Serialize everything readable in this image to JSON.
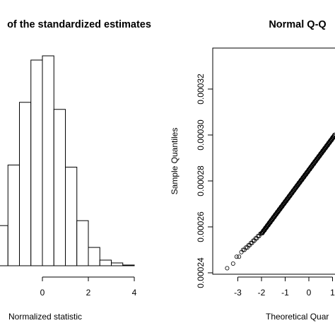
{
  "chart_data": [
    {
      "type": "bar",
      "title": "of the standardized estimates",
      "xlabel": "Normalized statistic",
      "ylabel": "",
      "x_ticks": [
        "0",
        "2",
        "4"
      ],
      "xlim": [
        -2.0,
        4.0
      ],
      "bin_width": 0.5,
      "bins": [
        {
          "x0": -2.0,
          "x1": -1.5,
          "value": 57
        },
        {
          "x0": -1.5,
          "x1": -1.0,
          "value": 143
        },
        {
          "x0": -1.0,
          "x1": -0.5,
          "value": 232
        },
        {
          "x0": -0.5,
          "x1": 0.0,
          "value": 292
        },
        {
          "x0": 0.0,
          "x1": 0.5,
          "value": 298
        },
        {
          "x0": 0.5,
          "x1": 1.0,
          "value": 222
        },
        {
          "x0": 1.0,
          "x1": 1.5,
          "value": 140
        },
        {
          "x0": 1.5,
          "x1": 2.0,
          "value": 64
        },
        {
          "x0": 2.0,
          "x1": 2.5,
          "value": 26
        },
        {
          "x0": 2.5,
          "x1": 3.0,
          "value": 8
        },
        {
          "x0": 3.0,
          "x1": 3.5,
          "value": 4
        },
        {
          "x0": 3.5,
          "x1": 4.0,
          "value": 1
        }
      ],
      "grid": false
    },
    {
      "type": "scatter",
      "title": "Normal Q-Q",
      "xlabel": "Theoretical Quar",
      "ylabel": "Sample Quantiles",
      "x_ticks": [
        "-3",
        "-2",
        "-1",
        "0",
        "1"
      ],
      "y_ticks": [
        "0.00024",
        "0.00026",
        "0.00028",
        "0.00030",
        "0.00032"
      ],
      "xlim": [
        -3.6,
        3.6
      ],
      "ylim": [
        0.000236,
        0.000338
      ],
      "marker": "open-circle",
      "grid": false,
      "series": [
        {
          "x": [
            -3.45,
            -3.2,
            -3.05,
            -2.95,
            -2.85,
            -2.78,
            -2.72,
            -2.66,
            -2.6,
            -2.55,
            -2.5,
            -2.45,
            -2.4,
            -2.35,
            -2.3,
            -2.25,
            -2.2,
            -2.15,
            -2.1,
            -2.05
          ],
          "y": [
            0.000242,
            0.000244,
            0.000247,
            0.000247,
            0.000249,
            0.00025,
            0.00025,
            0.000251,
            0.000251,
            0.000252,
            0.000252,
            0.000253,
            0.000253,
            0.000254,
            0.000254,
            0.000255,
            0.000255,
            0.000256,
            0.000256,
            0.000257
          ]
        }
      ],
      "trend": {
        "description": "dense points along a straight line",
        "from": [
          -2.0,
          0.000257
        ],
        "to": [
          1.1,
          0.0003
        ]
      }
    }
  ]
}
